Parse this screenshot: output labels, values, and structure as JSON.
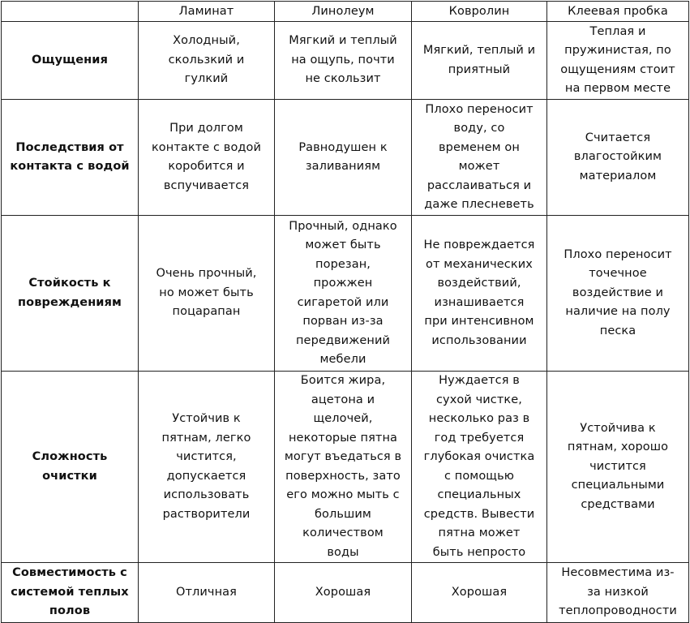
{
  "header": [
    "",
    "Ламинат",
    "Линолеум",
    "Ковролин",
    "Клеевая пробка"
  ],
  "rows": [
    {
      "label": "Ощущения",
      "cells": [
        "Холодный,\nскользкий  и\nгулкий",
        "Мягкий и теплый\nна ощупь, почти\nне скользит",
        "Мягкий, теплый и\nприятный",
        "Теплая и\nпружинистая, по\nощущениям стоит\nна первом месте"
      ]
    },
    {
      "label": "Последствия от\nконтакта с водой",
      "cells": [
        "При долгом\nконтакте с водой\nкоробится и\nвспучивается",
        "Равнодушен к\nзаливаниям",
        "Плохо переносит\nводу, со\nвременем он\nможет\nрасслаиваться и\nдаже плесневеть",
        "Считается\nвлагостойким\nматериалом"
      ]
    },
    {
      "label": "Стойкость к\nповреждениям",
      "cells": [
        "Очень прочный,\nно может быть\nпоцарапан",
        "Прочный, однако\nможет быть\nпорезан,\nпрожжен\nсигаретой или\nпорван из-за\nпередвижений\nмебели",
        "Не повреждается\nот механических\nвоздействий,\nизнашивается\nпри интенсивном\nиспользовании",
        "Плохо переносит\nточечное\nвоздействие и\nналичие на полу\nпеска"
      ]
    },
    {
      "label": "Сложность\nочистки",
      "cells": [
        "Устойчив к\nпятнам, легко\nчистится,\nдопускается\nиспользовать\nрастворители",
        "Боится жира,\nацетона и\nщелочей,\nнекоторые пятна\nмогут въедаться в\nповерхность, зато\nего можно мыть с\nбольшим\nколичеством\nводы",
        "Нуждается в\nсухой чистке,\nнесколько раз в\nгод требуется\nглубокая очистка\nс помощью\nспециальных\nсредств. Вывести\nпятна может\nбыть непросто",
        "Устойчива к\nпятнам, хорошо\nчистится\nспециальными\nсредствами"
      ]
    },
    {
      "label": "Совместимость с\nсистемой теплых\nполов",
      "cells": [
        "Отличная",
        "Хорошая",
        "Хорошая",
        "Несовместима из-\nза низкой\nтеплопроводности"
      ]
    }
  ]
}
